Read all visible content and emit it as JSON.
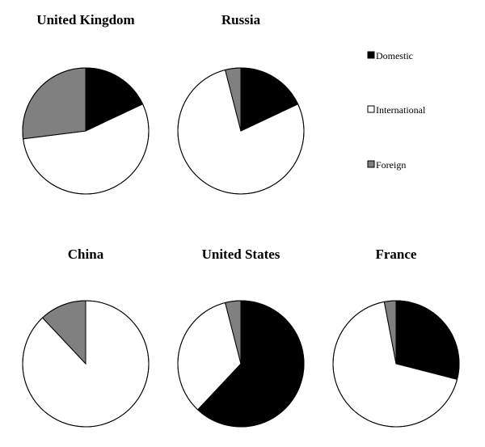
{
  "chart_data": {
    "type": "pie",
    "legend": {
      "placement": "right",
      "entries": [
        {
          "name": "Domestic",
          "color": "#000000"
        },
        {
          "name": "International",
          "color": "#ffffff"
        },
        {
          "name": "Foreign",
          "color": "#808080"
        }
      ]
    },
    "charts": [
      {
        "title": "United Kingdom",
        "slices": [
          {
            "name": "Domestic",
            "value": 18
          },
          {
            "name": "International",
            "value": 55
          },
          {
            "name": "Foreign",
            "value": 27
          }
        ]
      },
      {
        "title": "Russia",
        "slices": [
          {
            "name": "Domestic",
            "value": 18
          },
          {
            "name": "International",
            "value": 78
          },
          {
            "name": "Foreign",
            "value": 4
          }
        ]
      },
      {
        "title": "China",
        "slices": [
          {
            "name": "Domestic",
            "value": 0
          },
          {
            "name": "International",
            "value": 88
          },
          {
            "name": "Foreign",
            "value": 12
          }
        ]
      },
      {
        "title": "United States",
        "slices": [
          {
            "name": "Domestic",
            "value": 62
          },
          {
            "name": "International",
            "value": 34
          },
          {
            "name": "Foreign",
            "value": 4
          }
        ]
      },
      {
        "title": "France",
        "slices": [
          {
            "name": "Domestic",
            "value": 29
          },
          {
            "name": "International",
            "value": 68
          },
          {
            "name": "Foreign",
            "value": 3
          }
        ]
      }
    ]
  }
}
